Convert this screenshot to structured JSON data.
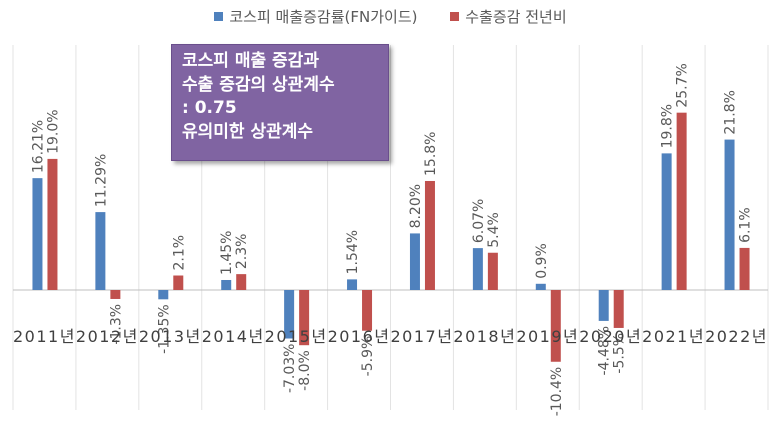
{
  "chart_data": {
    "type": "bar",
    "categories": [
      "2011년",
      "2012년",
      "2013년",
      "2014년",
      "2015년",
      "2016년",
      "2017년",
      "2018년",
      "2019년",
      "2020년",
      "2021년",
      "2022년"
    ],
    "series": [
      {
        "name": "코스피 매출증감률(FN가이드)",
        "color": "#4f81bd",
        "values": [
          16.21,
          11.29,
          -1.35,
          1.45,
          -7.03,
          1.54,
          8.2,
          6.07,
          0.9,
          -4.48,
          19.8,
          21.8
        ],
        "labels": [
          "16.21%",
          "11.29%",
          "-1.35%",
          "1.45%",
          "-7.03%",
          "1.54%",
          "8.20%",
          "6.07%",
          "0.9%",
          "-4.48%",
          "19.8%",
          "21.8%"
        ]
      },
      {
        "name": "수출증감 전년비",
        "color": "#c0504d",
        "values": [
          19.0,
          -1.3,
          2.1,
          2.3,
          -8.0,
          -5.9,
          15.8,
          5.4,
          -10.4,
          -5.5,
          25.7,
          6.1
        ],
        "labels": [
          "19.0%",
          "-1.3%",
          "2.1%",
          "2.3%",
          "-8.0%",
          "-5.9%",
          "15.8%",
          "5.4%",
          "-10.4%",
          "-5.5%",
          "25.7%",
          "6.1%"
        ]
      }
    ],
    "ylim": [
      -15,
      30
    ],
    "grid": false,
    "legend": "top-center",
    "annotation": [
      "코스피 매출 증감과",
      "수출 증감의 상관계수",
      ": 0.75",
      "유의미한 상관계수"
    ]
  }
}
